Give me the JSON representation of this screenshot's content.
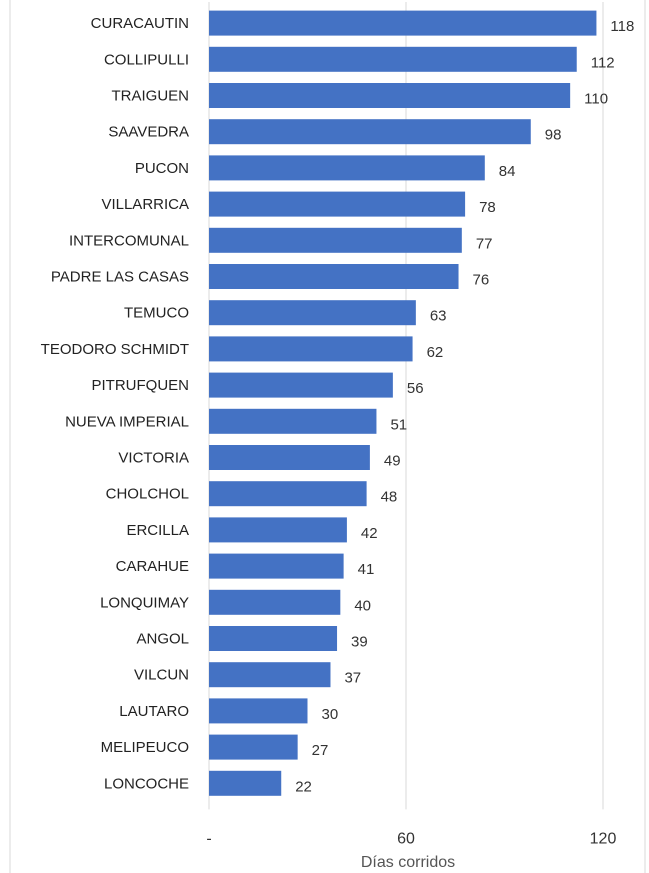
{
  "chart_data": {
    "type": "bar",
    "orientation": "horizontal",
    "categories": [
      "CURACAUTIN",
      "COLLIPULLI",
      "TRAIGUEN",
      "SAAVEDRA",
      "PUCON",
      "VILLARRICA",
      "INTERCOMUNAL",
      "PADRE LAS CASAS",
      "TEMUCO",
      "TEODORO SCHMIDT",
      "PITRUFQUEN",
      "NUEVA IMPERIAL",
      "VICTORIA",
      "CHOLCHOL",
      "ERCILLA",
      "CARAHUE",
      "LONQUIMAY",
      "ANGOL",
      "VILCUN",
      "LAUTARO",
      "MELIPEUCO",
      "LONCOCHE"
    ],
    "values": [
      118,
      112,
      110,
      98,
      84,
      78,
      77,
      76,
      63,
      62,
      56,
      51,
      49,
      48,
      42,
      41,
      40,
      39,
      37,
      30,
      27,
      22
    ],
    "xlabel": "Días corridos",
    "ylabel": "",
    "xlim": [
      0,
      120
    ],
    "x_ticks": [
      0,
      60,
      120
    ],
    "x_tick_labels": [
      "-",
      "60",
      "120"
    ],
    "grid": "vertical",
    "legend": "none",
    "bar_color": "#4472C4",
    "grid_color": "#d9d9d9"
  }
}
